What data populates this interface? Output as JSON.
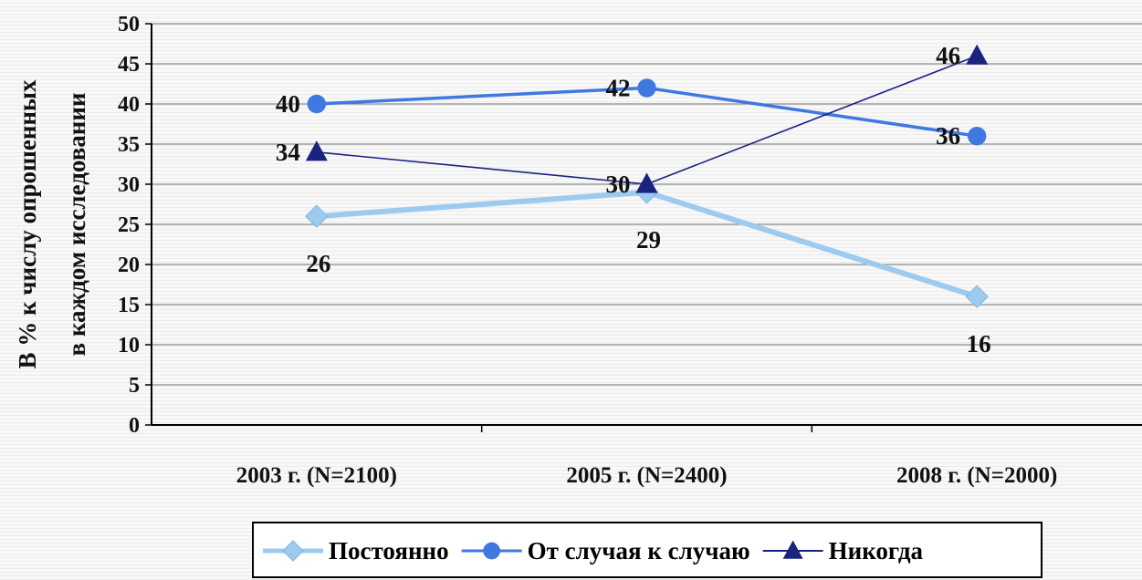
{
  "chart_data": {
    "type": "line",
    "categories": [
      "2003 г. (N=2100)",
      "2005 г. (N=2400)",
      "2008 г. (N=2000)"
    ],
    "ylabel_lines": [
      "В % к числу опрошенных",
      "в каждом исследовании"
    ],
    "ylim": [
      0,
      50
    ],
    "yticks": [
      0,
      5,
      10,
      15,
      20,
      25,
      30,
      35,
      40,
      45,
      50
    ],
    "grid": true,
    "legend_position": "bottom",
    "series": [
      {
        "name": "Постоянно",
        "values": [
          26,
          29,
          16
        ],
        "color": "#9dcbf0",
        "marker": "diamond",
        "label_strings": [
          "26",
          "29",
          "16"
        ],
        "label_placement": "below"
      },
      {
        "name": "От случая к случаю",
        "values": [
          40,
          42,
          36
        ],
        "color": "#3f78e0",
        "marker": "circle",
        "label_strings": [
          "40",
          "42",
          "36"
        ],
        "label_placement": "left"
      },
      {
        "name": "Никогда",
        "values": [
          34,
          30,
          46
        ],
        "color": "#1a237e",
        "marker": "triangle",
        "label_strings": [
          "34",
          "30",
          "46"
        ],
        "label_placement": "left"
      }
    ]
  }
}
